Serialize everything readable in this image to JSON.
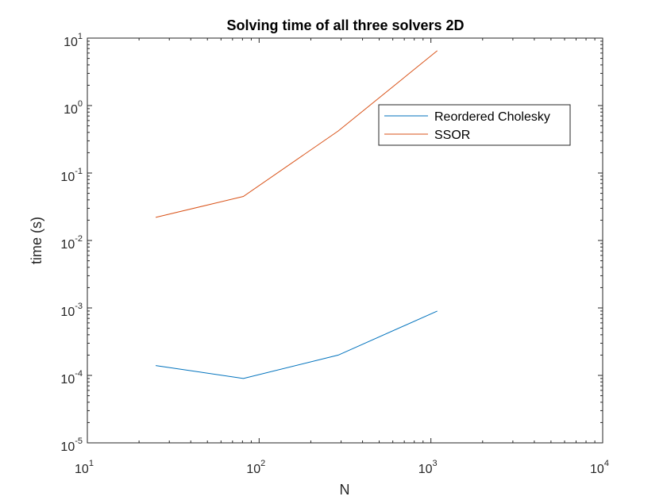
{
  "chart_data": {
    "type": "line",
    "title": "Solving time of all three solvers 2D",
    "xlabel": "N",
    "ylabel": "time (s)",
    "xscale": "log",
    "yscale": "log",
    "xlim": [
      10,
      10000
    ],
    "ylim": [
      1e-05,
      10
    ],
    "x_ticks": [
      {
        "base": "10",
        "exp": "1",
        "value": 10
      },
      {
        "base": "10",
        "exp": "2",
        "value": 100
      },
      {
        "base": "10",
        "exp": "3",
        "value": 1000
      },
      {
        "base": "10",
        "exp": "4",
        "value": 10000
      }
    ],
    "y_ticks": [
      {
        "base": "10",
        "exp": "-5",
        "value": 1e-05
      },
      {
        "base": "10",
        "exp": "-4",
        "value": 0.0001
      },
      {
        "base": "10",
        "exp": "-3",
        "value": 0.001
      },
      {
        "base": "10",
        "exp": "-2",
        "value": 0.01
      },
      {
        "base": "10",
        "exp": "-1",
        "value": 0.1
      },
      {
        "base": "10",
        "exp": "0",
        "value": 1
      },
      {
        "base": "10",
        "exp": "1",
        "value": 10
      }
    ],
    "grid": false,
    "legend_position": "top-right",
    "series": [
      {
        "name": "Reordered Cholesky",
        "color": "#0072BD",
        "x": [
          25,
          81,
          289,
          1089
        ],
        "y": [
          0.00014,
          9e-05,
          0.0002,
          0.0009
        ]
      },
      {
        "name": "SSOR",
        "color": "#D95319",
        "x": [
          25,
          81,
          289,
          1089
        ],
        "y": [
          0.022,
          0.045,
          0.42,
          6.5
        ]
      }
    ]
  }
}
